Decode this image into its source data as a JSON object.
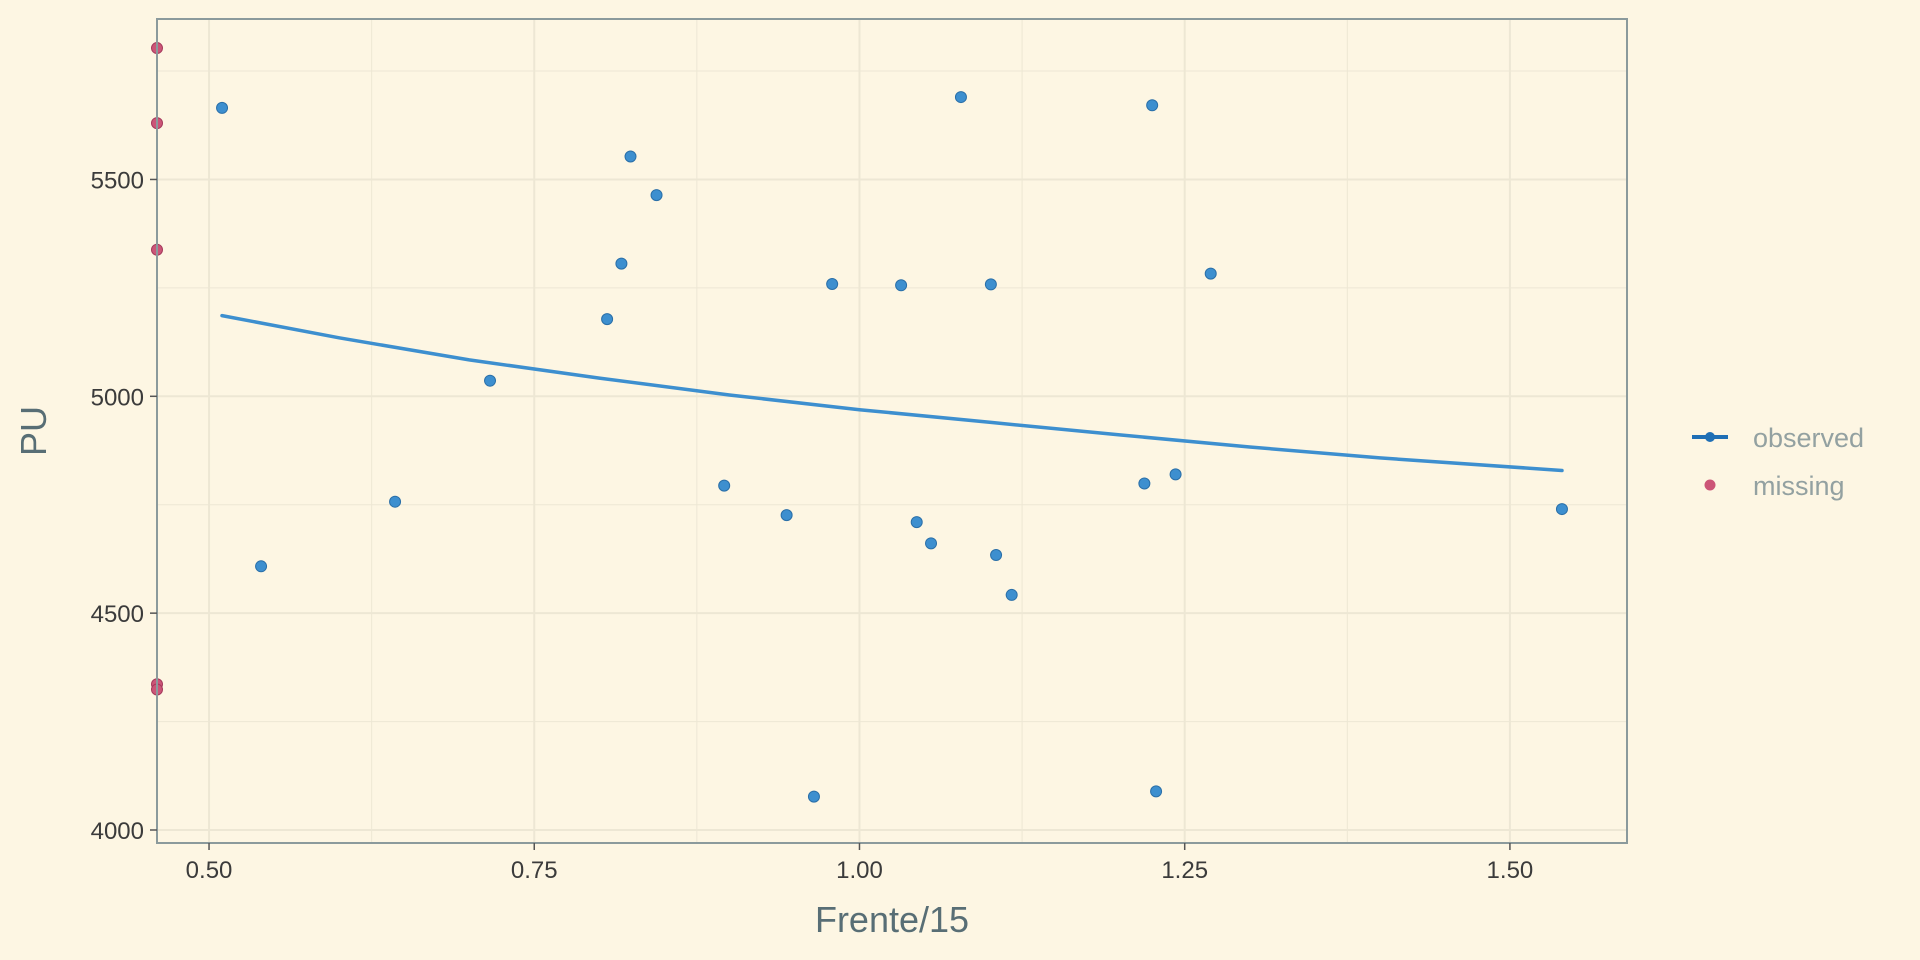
{
  "chart_data": {
    "type": "scatter",
    "xlabel": "Frente/15",
    "ylabel": "PU",
    "xlim": [
      0.46,
      1.59
    ],
    "ylim": [
      3970,
      5870
    ],
    "x_ticks": [
      "0.50",
      "0.75",
      "1.00",
      "1.25",
      "1.50"
    ],
    "x_tick_values": [
      0.5,
      0.75,
      1.0,
      1.25,
      1.5
    ],
    "y_ticks": [
      "4000",
      "4500",
      "5000",
      "5500"
    ],
    "y_tick_values": [
      4000,
      4500,
      5000,
      5500
    ],
    "grid": true,
    "legend_position": "right",
    "colors": {
      "background": "#fdf6e3",
      "grid": "#ede7d4",
      "panel_border": "#8b9a9c",
      "observed": "#3d8fcf",
      "observed_line": "#1f6fb5",
      "missing": "#cc5577"
    },
    "series": [
      {
        "name": "observed",
        "marker": "point",
        "points": [
          {
            "x": 0.51,
            "y": 5665
          },
          {
            "x": 0.54,
            "y": 4608
          },
          {
            "x": 0.643,
            "y": 4757
          },
          {
            "x": 0.716,
            "y": 5036
          },
          {
            "x": 0.806,
            "y": 5178
          },
          {
            "x": 0.817,
            "y": 5306
          },
          {
            "x": 0.824,
            "y": 5553
          },
          {
            "x": 0.844,
            "y": 5464
          },
          {
            "x": 0.896,
            "y": 4794
          },
          {
            "x": 0.944,
            "y": 4726
          },
          {
            "x": 0.965,
            "y": 4077
          },
          {
            "x": 0.979,
            "y": 5259
          },
          {
            "x": 1.032,
            "y": 5256
          },
          {
            "x": 1.044,
            "y": 4710
          },
          {
            "x": 1.055,
            "y": 4661
          },
          {
            "x": 1.078,
            "y": 5690
          },
          {
            "x": 1.101,
            "y": 5258
          },
          {
            "x": 1.105,
            "y": 4634
          },
          {
            "x": 1.117,
            "y": 4542
          },
          {
            "x": 1.219,
            "y": 4799
          },
          {
            "x": 1.225,
            "y": 5671
          },
          {
            "x": 1.228,
            "y": 4089
          },
          {
            "x": 1.243,
            "y": 4820
          },
          {
            "x": 1.27,
            "y": 5283
          },
          {
            "x": 1.54,
            "y": 4740
          }
        ]
      },
      {
        "name": "missing",
        "marker": "point",
        "points": [
          {
            "x": 0.46,
            "y": 5803
          },
          {
            "x": 0.46,
            "y": 5630
          },
          {
            "x": 0.46,
            "y": 5338
          },
          {
            "x": 0.46,
            "y": 4336
          },
          {
            "x": 0.46,
            "y": 4324
          }
        ]
      }
    ],
    "fit_line": {
      "series": "observed",
      "points": [
        {
          "x": 0.51,
          "y": 5186
        },
        {
          "x": 0.6,
          "y": 5135
        },
        {
          "x": 0.7,
          "y": 5084
        },
        {
          "x": 0.8,
          "y": 5042
        },
        {
          "x": 0.9,
          "y": 5003
        },
        {
          "x": 1.0,
          "y": 4969
        },
        {
          "x": 1.1,
          "y": 4940
        },
        {
          "x": 1.2,
          "y": 4911
        },
        {
          "x": 1.3,
          "y": 4883
        },
        {
          "x": 1.4,
          "y": 4858
        },
        {
          "x": 1.54,
          "y": 4829
        }
      ]
    },
    "legend": [
      {
        "label": "observed",
        "marker": "line-point"
      },
      {
        "label": "missing",
        "marker": "point"
      }
    ]
  }
}
